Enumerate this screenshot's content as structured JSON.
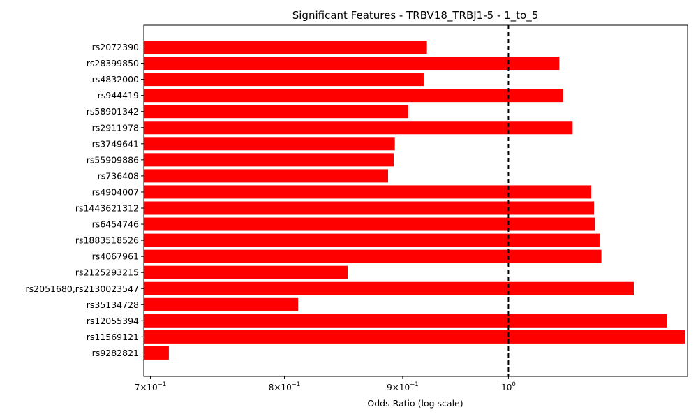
{
  "chart_data": {
    "type": "bar",
    "orientation": "horizontal",
    "title": "Significant Features - TRBV18_TRBJ1-5 - 1_to_5",
    "xlabel": "Odds Ratio (log scale)",
    "ylabel": "",
    "x_scale": "log",
    "xlim": [
      0.6954,
      1.1953
    ],
    "x_ticks": [
      {
        "value": 0.7,
        "base": "7",
        "exp": "−1"
      },
      {
        "value": 0.8,
        "base": "8",
        "exp": "−1"
      },
      {
        "value": 0.9,
        "base": "9",
        "exp": "−1"
      },
      {
        "value": 1.0,
        "base": "10",
        "exp": "0"
      }
    ],
    "x_tick_multiplier": "×10",
    "reference_line": {
      "value": 1.0,
      "style": "dashed",
      "color": "#000000"
    },
    "bar_color": "#ff0000",
    "grid": false,
    "categories": [
      "rs2072390",
      "rs28399850",
      "rs4832000",
      "rs944419",
      "rs58901342",
      "rs2911978",
      "rs3749641",
      "rs55909886",
      "rs736408",
      "rs4904007",
      "rs1443621312",
      "rs6454746",
      "rs1883518526",
      "rs4067961",
      "rs2125293215",
      "rs2051680,rs2130023547",
      "rs35134728",
      "rs12055394",
      "rs11569121",
      "rs9282821"
    ],
    "values": [
      0.922,
      1.052,
      0.919,
      1.056,
      0.905,
      1.066,
      0.893,
      0.892,
      0.887,
      1.086,
      1.089,
      1.09,
      1.095,
      1.097,
      0.852,
      1.133,
      0.811,
      1.171,
      1.192,
      0.713
    ]
  }
}
